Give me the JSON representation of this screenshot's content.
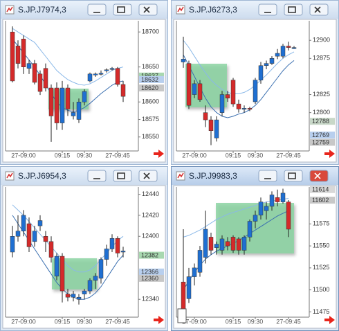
{
  "windows": [
    {
      "title": "S.JP.J7974,3",
      "chart": {
        "type": "candlestick",
        "categories": [
          null,
          null,
          "27-09:00",
          null,
          null,
          null,
          null,
          null,
          null,
          "09:15",
          null,
          null,
          null,
          "09:30",
          null,
          null,
          null,
          null,
          null,
          "27-09:45",
          null
        ],
        "open": [
          18700,
          18680,
          18690,
          18648,
          18655,
          18640,
          18648,
          18620,
          18620,
          18570,
          18620,
          18580,
          18575,
          18600,
          18630,
          18640,
          18640,
          18645,
          18648,
          18648,
          18625
        ],
        "high": [
          18708,
          18688,
          18695,
          18660,
          18660,
          18645,
          18655,
          18625,
          18628,
          18630,
          18625,
          18600,
          18605,
          18618,
          18642,
          18642,
          18645,
          18648,
          18650,
          18650,
          18630
        ],
        "low": [
          18628,
          18648,
          18640,
          18640,
          18625,
          18610,
          18615,
          18543,
          18560,
          18560,
          18580,
          18575,
          18570,
          18595,
          18628,
          18636,
          18638,
          18642,
          18645,
          18622,
          18600
        ],
        "close": [
          18630,
          18655,
          18650,
          18655,
          18628,
          18615,
          18620,
          18580,
          18570,
          18620,
          18590,
          18585,
          18600,
          18615,
          18640,
          18640,
          18641,
          18646,
          18648,
          18625,
          18608
        ],
        "ylim": [
          18530,
          18716
        ],
        "yticks": [
          18550,
          18575,
          18600,
          18650,
          18700
        ],
        "up_color": "#1f6fd1",
        "down_color": "#d42a2a",
        "lines": [
          {
            "color": "#8ab8e8",
            "values": [
              18705,
              18700,
              18695,
              18690,
              18685,
              18675,
              18665,
              18655,
              18645,
              18638,
              18632,
              18628,
              18625,
              18624,
              18626,
              18630,
              18635,
              18640,
              18645,
              18648,
              18650
            ]
          },
          {
            "color": "#3a6fb0",
            "values": [
              18690,
              18680,
              18670,
              18660,
              18650,
              18638,
              18625,
              18612,
              18600,
              18592,
              18588,
              18586,
              18588,
              18592,
              18598,
              18605,
              18612,
              18618,
              18624,
              18628,
              18630
            ]
          }
        ],
        "price_tags": [
          {
            "value": 18637,
            "color": "#a8d8b0"
          },
          {
            "value": 18632,
            "color": "#b8cfee"
          },
          {
            "value": 18620,
            "color": "#c8c8c8"
          }
        ]
      }
    },
    {
      "title": "S.JP.J6273,3",
      "chart": {
        "type": "candlestick",
        "categories": [
          null,
          null,
          "27-09:00",
          null,
          null,
          null,
          null,
          null,
          null,
          "09:15",
          null,
          null,
          null,
          "09:30",
          null,
          null,
          null,
          null,
          null,
          "27-09:45",
          null
        ],
        "open": [
          12870,
          12868,
          12825,
          12840,
          12800,
          12790,
          12765,
          12800,
          12825,
          12845,
          12812,
          12805,
          12806,
          12815,
          12845,
          12865,
          12868,
          12878,
          12878,
          12892,
          12890
        ],
        "high": [
          12905,
          12872,
          12845,
          12845,
          12810,
          12795,
          12795,
          12830,
          12830,
          12848,
          12818,
          12810,
          12808,
          12848,
          12870,
          12872,
          12878,
          12888,
          12895,
          12898,
          12892
        ],
        "low": [
          12862,
          12805,
          12820,
          12815,
          12780,
          12755,
          12760,
          12795,
          12815,
          12808,
          12800,
          12800,
          12802,
          12812,
          12840,
          12860,
          12866,
          12874,
          12875,
          12886,
          12888
        ],
        "close": [
          12874,
          12810,
          12840,
          12818,
          12790,
          12775,
          12790,
          12825,
          12820,
          12812,
          12805,
          12806,
          12805,
          12845,
          12865,
          12868,
          12875,
          12882,
          12892,
          12890,
          12890
        ],
        "ylim": [
          12747,
          12927
        ],
        "yticks": [
          12800,
          12825,
          12875,
          12900
        ],
        "up_color": "#1f6fd1",
        "down_color": "#d42a2a",
        "lines": [
          {
            "color": "#8ab8e8",
            "values": [
              12900,
              12890,
              12878,
              12866,
              12855,
              12845,
              12838,
              12832,
              12828,
              12826,
              12826,
              12828,
              12832,
              12838,
              12845,
              12852,
              12860,
              12868,
              12875,
              12880,
              12884
            ]
          },
          {
            "color": "#3a6fb0",
            "values": [
              12880,
              12865,
              12850,
              12835,
              12820,
              12808,
              12800,
              12795,
              12793,
              12795,
              12798,
              12800,
              12804,
              12810,
              12818,
              12828,
              12838,
              12848,
              12858,
              12866,
              12872
            ]
          }
        ],
        "price_tags": [
          {
            "value": 12788,
            "color": "#c8d8c8"
          },
          {
            "value": 12769,
            "color": "#b8cfee"
          },
          {
            "value": 12759,
            "color": "#c8c8c8"
          }
        ]
      }
    },
    {
      "title": "S.JP.J6954,3",
      "chart": {
        "type": "candlestick",
        "categories": [
          null,
          null,
          "27-09:00",
          null,
          null,
          null,
          null,
          null,
          null,
          "09:15",
          null,
          null,
          null,
          "09:30",
          null,
          null,
          null,
          null,
          null,
          "27-09:45",
          null
        ],
        "open": [
          12385,
          12400,
          12405,
          12412,
          12395,
          12410,
          12400,
          12395,
          12362,
          12381,
          12345,
          12342,
          12340,
          12345,
          12348,
          12358,
          12360,
          12378,
          12388,
          12398,
          12385
        ],
        "high": [
          12410,
          12420,
          12425,
          12418,
          12410,
          12420,
          12405,
          12400,
          12384,
          12384,
          12350,
          12348,
          12345,
          12350,
          12360,
          12365,
          12380,
          12392,
          12402,
          12400,
          12390
        ],
        "low": [
          12380,
          12395,
          12400,
          12385,
          12390,
          12405,
          12385,
          12375,
          12358,
          12337,
          12338,
          12338,
          12335,
          12340,
          12345,
          12350,
          12355,
          12372,
          12385,
          12380,
          12380
        ],
        "close": [
          12400,
          12405,
          12420,
          12390,
          12405,
          12415,
          12395,
          12380,
          12381,
          12348,
          12342,
          12345,
          12342,
          12348,
          12358,
          12362,
          12378,
          12388,
          12398,
          12384,
          12386
        ],
        "ylim": [
          12323,
          12447
        ],
        "yticks": [
          12340,
          12400,
          12420,
          12440
        ],
        "up_color": "#1f6fd1",
        "down_color": "#d42a2a",
        "lines": [
          {
            "color": "#8ab8e8",
            "values": [
              12430,
              12425,
              12420,
              12414,
              12408,
              12402,
              12396,
              12390,
              12384,
              12378,
              12372,
              12368,
              12366,
              12366,
              12368,
              12372,
              12378,
              12384,
              12390,
              12396,
              12400
            ]
          },
          {
            "color": "#3a6fb0",
            "values": [
              12420,
              12412,
              12404,
              12396,
              12388,
              12380,
              12372,
              12364,
              12356,
              12350,
              12345,
              12342,
              12340,
              12340,
              12342,
              12346,
              12352,
              12360,
              12368,
              12376,
              12382
            ]
          }
        ],
        "price_tags": [
          {
            "value": 12382,
            "color": "#a8d8b0"
          },
          {
            "value": 12366,
            "color": "#b8cfee"
          },
          {
            "value": 12360,
            "color": "#c8c8c8"
          }
        ]
      }
    },
    {
      "title": "S.JP.J9983,3",
      "chart": {
        "type": "candlestick",
        "categories": [
          null,
          null,
          "27-09:00",
          null,
          null,
          null,
          null,
          null,
          null,
          "09:15",
          null,
          null,
          null,
          "09:30",
          null,
          null,
          null,
          null,
          null,
          "27-09:45",
          null
        ],
        "open": [
          11509,
          11490,
          11515,
          11520,
          11537,
          11560,
          11548,
          11545,
          11555,
          11560,
          11558,
          11545,
          11560,
          11578,
          11585,
          11590,
          11595,
          11605,
          11600,
          11600,
          null
        ],
        "high": [
          11569,
          11525,
          11530,
          11550,
          11590,
          11565,
          11555,
          11562,
          11560,
          11562,
          11560,
          11562,
          11580,
          11590,
          11605,
          11600,
          11612,
          11614,
          11615,
          11602,
          null
        ],
        "low": [
          11475,
          11485,
          11505,
          11515,
          11530,
          11540,
          11540,
          11540,
          11545,
          11542,
          11540,
          11540,
          11555,
          11570,
          11580,
          11580,
          11590,
          11595,
          11598,
          11560,
          null
        ],
        "close": [
          11477,
          11515,
          11525,
          11545,
          11569,
          11545,
          11552,
          11558,
          11550,
          11545,
          11545,
          11560,
          11578,
          11585,
          11600,
          11595,
          11608,
          11600,
          11610,
          11569,
          null
        ],
        "ylim": [
          11469,
          11617
        ],
        "yticks": [
          11475,
          11500,
          11525,
          11550,
          11575
        ],
        "up_color": "#1f6fd1",
        "down_color": "#d42a2a",
        "lines": [
          {
            "color": "#8ab8e8",
            "values": [
              11560,
              11562,
              11565,
              11568,
              11572,
              11576,
              11580,
              11583,
              11586,
              11588,
              11590,
              11592,
              11594,
              11596,
              11598,
              11600,
              11601,
              11602,
              11603,
              11604,
              null
            ]
          },
          {
            "color": "#3a6fb0",
            "values": [
              11500,
              11510,
              11520,
              11528,
              11535,
              11540,
              11544,
              11547,
              11550,
              11553,
              11556,
              11560,
              11564,
              11568,
              11572,
              11576,
              11580,
              11584,
              11587,
              11590,
              null
            ]
          }
        ],
        "price_tags": [
          {
            "value": 11614,
            "color": "#d8d8d8"
          },
          {
            "value": 11602,
            "color": "#c8c8c8"
          }
        ]
      }
    }
  ]
}
